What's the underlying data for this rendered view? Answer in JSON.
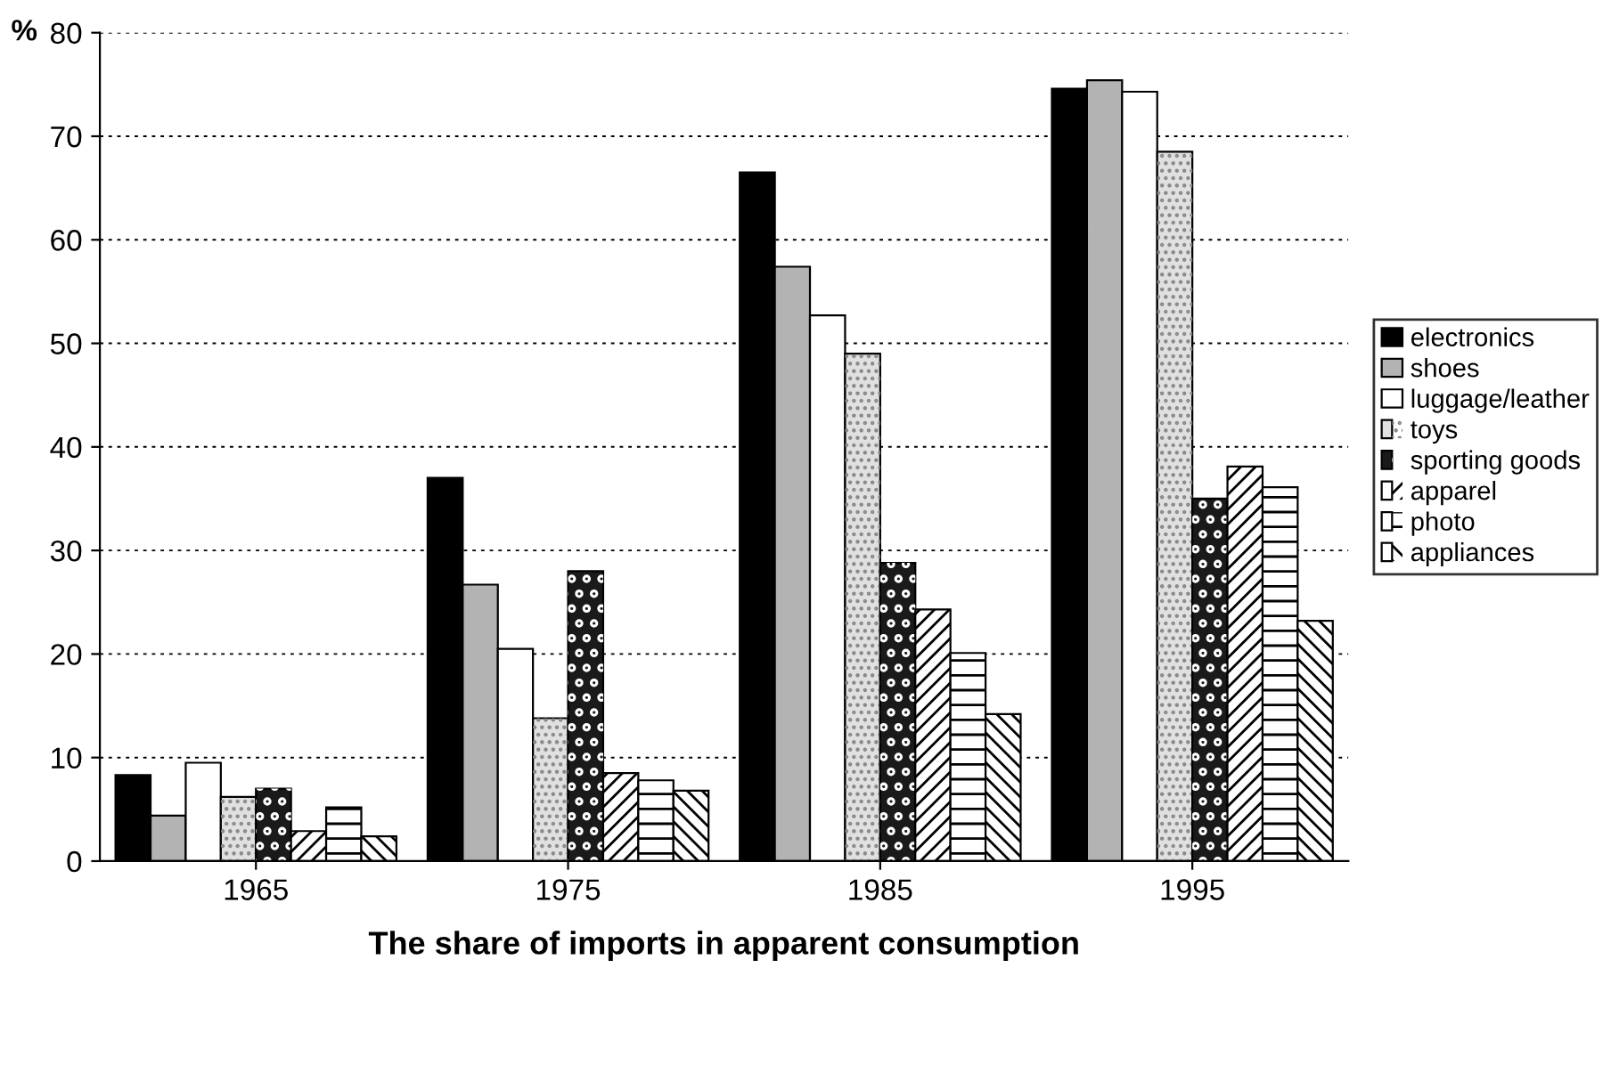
{
  "chart_data": {
    "type": "bar",
    "xlabel": "The share of imports in apparent consumption",
    "ylabel": "%",
    "categories": [
      "1965",
      "1975",
      "1985",
      "1995"
    ],
    "series": [
      {
        "name": "electronics",
        "color": "#000000",
        "values": [
          8.3,
          37,
          66.5,
          74.6
        ]
      },
      {
        "name": "shoes",
        "color": "#b3b3b3",
        "values": [
          4.4,
          26.7,
          57.4,
          75.4
        ]
      },
      {
        "name": "luggage/leather",
        "color": "#ffffff",
        "values": [
          9.5,
          20.5,
          52.7,
          74.3
        ]
      },
      {
        "name": "toys",
        "color": "#e0e0e0",
        "values": [
          6.2,
          13.8,
          49,
          68.5
        ]
      },
      {
        "name": "sporting goods",
        "color": "#1a1a1a",
        "values": [
          7,
          28,
          28.8,
          35
        ]
      },
      {
        "name": "apparel",
        "color": "#ffffff",
        "values": [
          2.9,
          8.5,
          24.3,
          38.1
        ]
      },
      {
        "name": "photo",
        "color": "#ffffff",
        "values": [
          5.2,
          7.8,
          20.1,
          36.1
        ]
      },
      {
        "name": "appliances",
        "color": "#ffffff",
        "values": [
          2.4,
          6.8,
          14.2,
          23.2
        ]
      }
    ],
    "ylim": [
      0,
      80
    ],
    "yticks": [
      0,
      10,
      20,
      30,
      40,
      50,
      60,
      70,
      80
    ],
    "grid": "y",
    "legend": "right"
  }
}
